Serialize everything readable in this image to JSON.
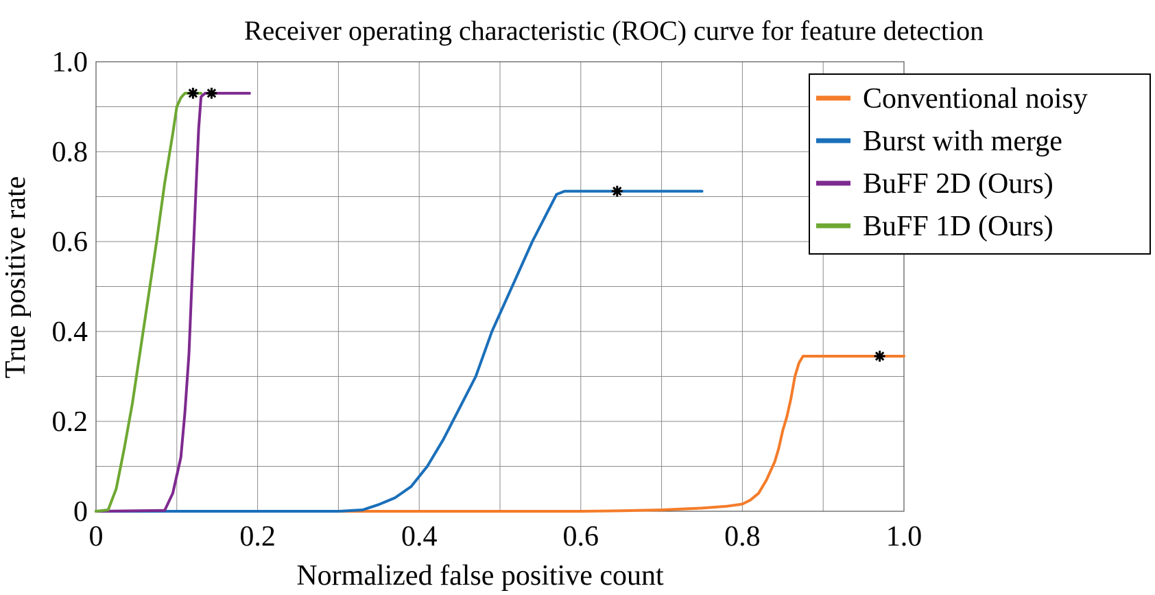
{
  "chart_data": {
    "type": "line",
    "title": "Receiver operating characteristic (ROC) curve for feature detection",
    "xlabel": "Normalized false positive count",
    "ylabel": "True positive rate",
    "xlim": [
      0,
      1.0
    ],
    "ylim": [
      0,
      1.0
    ],
    "x_ticks": [
      0,
      0.2,
      0.4,
      0.6,
      0.8,
      1.0
    ],
    "x_tick_labels": [
      "0",
      "0.2",
      "0.4",
      "0.6",
      "0.8",
      "1.0"
    ],
    "y_ticks": [
      0,
      0.2,
      0.4,
      0.6,
      0.8,
      1.0
    ],
    "y_tick_labels": [
      "0",
      "0.2",
      "0.4",
      "0.6",
      "0.8",
      "1.0"
    ],
    "x_grid": [
      0,
      0.1,
      0.2,
      0.3,
      0.4,
      0.5,
      0.6,
      0.7,
      0.8,
      0.9,
      1.0
    ],
    "y_grid": [
      0,
      0.1,
      0.2,
      0.3,
      0.4,
      0.5,
      0.6,
      0.7,
      0.8,
      0.9,
      1.0
    ],
    "grid": true,
    "legend_position": "top-right",
    "series": [
      {
        "name": "Conventional noisy",
        "color": "#f47c2a",
        "x": [
          0,
          0.6,
          0.65,
          0.7,
          0.75,
          0.78,
          0.8,
          0.81,
          0.82,
          0.83,
          0.835,
          0.84,
          0.845,
          0.85,
          0.855,
          0.86,
          0.865,
          0.87,
          0.875,
          0.88,
          1.0
        ],
        "y": [
          0,
          0,
          0.001,
          0.003,
          0.007,
          0.011,
          0.016,
          0.025,
          0.04,
          0.07,
          0.09,
          0.11,
          0.14,
          0.18,
          0.21,
          0.25,
          0.3,
          0.33,
          0.345,
          0.345,
          0.345
        ],
        "marker": {
          "x": 0.97,
          "y": 0.345
        }
      },
      {
        "name": "Burst with merge",
        "color": "#1a6fba",
        "x": [
          0,
          0.3,
          0.33,
          0.35,
          0.37,
          0.39,
          0.41,
          0.43,
          0.45,
          0.47,
          0.49,
          0.5,
          0.52,
          0.54,
          0.56,
          0.57,
          0.58,
          0.6,
          0.75
        ],
        "y": [
          0,
          0,
          0.003,
          0.015,
          0.03,
          0.055,
          0.1,
          0.16,
          0.23,
          0.3,
          0.4,
          0.44,
          0.52,
          0.6,
          0.67,
          0.705,
          0.712,
          0.712,
          0.712
        ],
        "marker": {
          "x": 0.645,
          "y": 0.712
        }
      },
      {
        "name": "BuFF 2D (Ours)",
        "color": "#7e2a8f",
        "x": [
          0,
          0.085,
          0.095,
          0.105,
          0.11,
          0.115,
          0.118,
          0.121,
          0.124,
          0.127,
          0.13,
          0.135,
          0.19
        ],
        "y": [
          0,
          0.002,
          0.04,
          0.12,
          0.22,
          0.35,
          0.48,
          0.6,
          0.73,
          0.85,
          0.922,
          0.93,
          0.93
        ],
        "marker": {
          "x": 0.143,
          "y": 0.93
        }
      },
      {
        "name": "BuFF 1D (Ours)",
        "color": "#6ea832",
        "x": [
          0,
          0.015,
          0.025,
          0.035,
          0.045,
          0.055,
          0.065,
          0.075,
          0.085,
          0.095,
          0.1,
          0.105,
          0.11,
          0.13
        ],
        "y": [
          0,
          0.003,
          0.05,
          0.14,
          0.24,
          0.36,
          0.48,
          0.6,
          0.73,
          0.84,
          0.9,
          0.92,
          0.93,
          0.93
        ],
        "marker": {
          "x": 0.12,
          "y": 0.93
        }
      }
    ]
  }
}
